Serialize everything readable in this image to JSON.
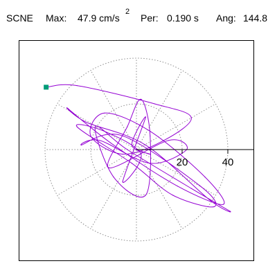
{
  "header": {
    "station": "SCNE",
    "max_label": "Max:",
    "max_value": "47.9 cm/s",
    "max_exponent": "2",
    "per_label": "Per:",
    "per_value": "0.190 s",
    "ang_label": "Ang:",
    "ang_value": "144.8"
  },
  "colors": {
    "trace": "#9400d3",
    "start_marker": "#009c77",
    "grid": "#8c8c8c",
    "axis": "#000000"
  },
  "chart_data": {
    "type": "scatter",
    "plot_style": "polar particle-motion hodogram",
    "units": "cm/s^2",
    "radial_rings": [
      20,
      40
    ],
    "tick_labels": [
      "20",
      "40"
    ],
    "spokes_deg": [
      0,
      30,
      60,
      90,
      120,
      150,
      180,
      210,
      240,
      270,
      300,
      330
    ],
    "max_amplitude": 47.9,
    "angle_deg": 144.8,
    "start_point": {
      "x": -39.5,
      "y": 27.3
    },
    "series": [
      {
        "values": [
          {
            "x": -39.5,
            "y": 27.3
          },
          {
            "x": -26,
            "y": 28
          },
          {
            "x": 8,
            "y": 20
          },
          {
            "x": 24,
            "y": 14
          },
          {
            "x": 12,
            "y": 4
          },
          {
            "x": -6,
            "y": -2
          },
          {
            "x": -20,
            "y": 6
          },
          {
            "x": -14,
            "y": 16
          },
          {
            "x": 6,
            "y": 8
          },
          {
            "x": 30,
            "y": -12
          },
          {
            "x": 38,
            "y": -24
          },
          {
            "x": 18,
            "y": -16
          },
          {
            "x": -10,
            "y": 2
          },
          {
            "x": -30,
            "y": 18
          },
          {
            "x": -22,
            "y": 12
          },
          {
            "x": 4,
            "y": 2
          },
          {
            "x": 32,
            "y": -22
          },
          {
            "x": 41,
            "y": -27
          },
          {
            "x": 24,
            "y": -17
          },
          {
            "x": -4,
            "y": 0
          },
          {
            "x": -18,
            "y": 10
          },
          {
            "x": -10,
            "y": -12
          },
          {
            "x": 4,
            "y": -20
          },
          {
            "x": 6,
            "y": 6
          },
          {
            "x": 2,
            "y": 22
          },
          {
            "x": -4,
            "y": 10
          },
          {
            "x": -12,
            "y": -8
          },
          {
            "x": 14,
            "y": 4
          },
          {
            "x": 22,
            "y": 0
          },
          {
            "x": 6,
            "y": -6
          },
          {
            "x": -16,
            "y": 4
          },
          {
            "x": -24,
            "y": 2
          },
          {
            "x": -6,
            "y": 6
          },
          {
            "x": 28,
            "y": -16
          },
          {
            "x": 34,
            "y": -25
          },
          {
            "x": 16,
            "y": -20
          },
          {
            "x": -2,
            "y": -6
          },
          {
            "x": -26,
            "y": 10
          },
          {
            "x": -14,
            "y": 8
          },
          {
            "x": 2,
            "y": -2
          },
          {
            "x": -6,
            "y": -14
          },
          {
            "x": 4,
            "y": 14
          },
          {
            "x": -2,
            "y": 2
          },
          {
            "x": 6,
            "y": -2
          },
          {
            "x": 0,
            "y": 0
          }
        ]
      }
    ]
  }
}
